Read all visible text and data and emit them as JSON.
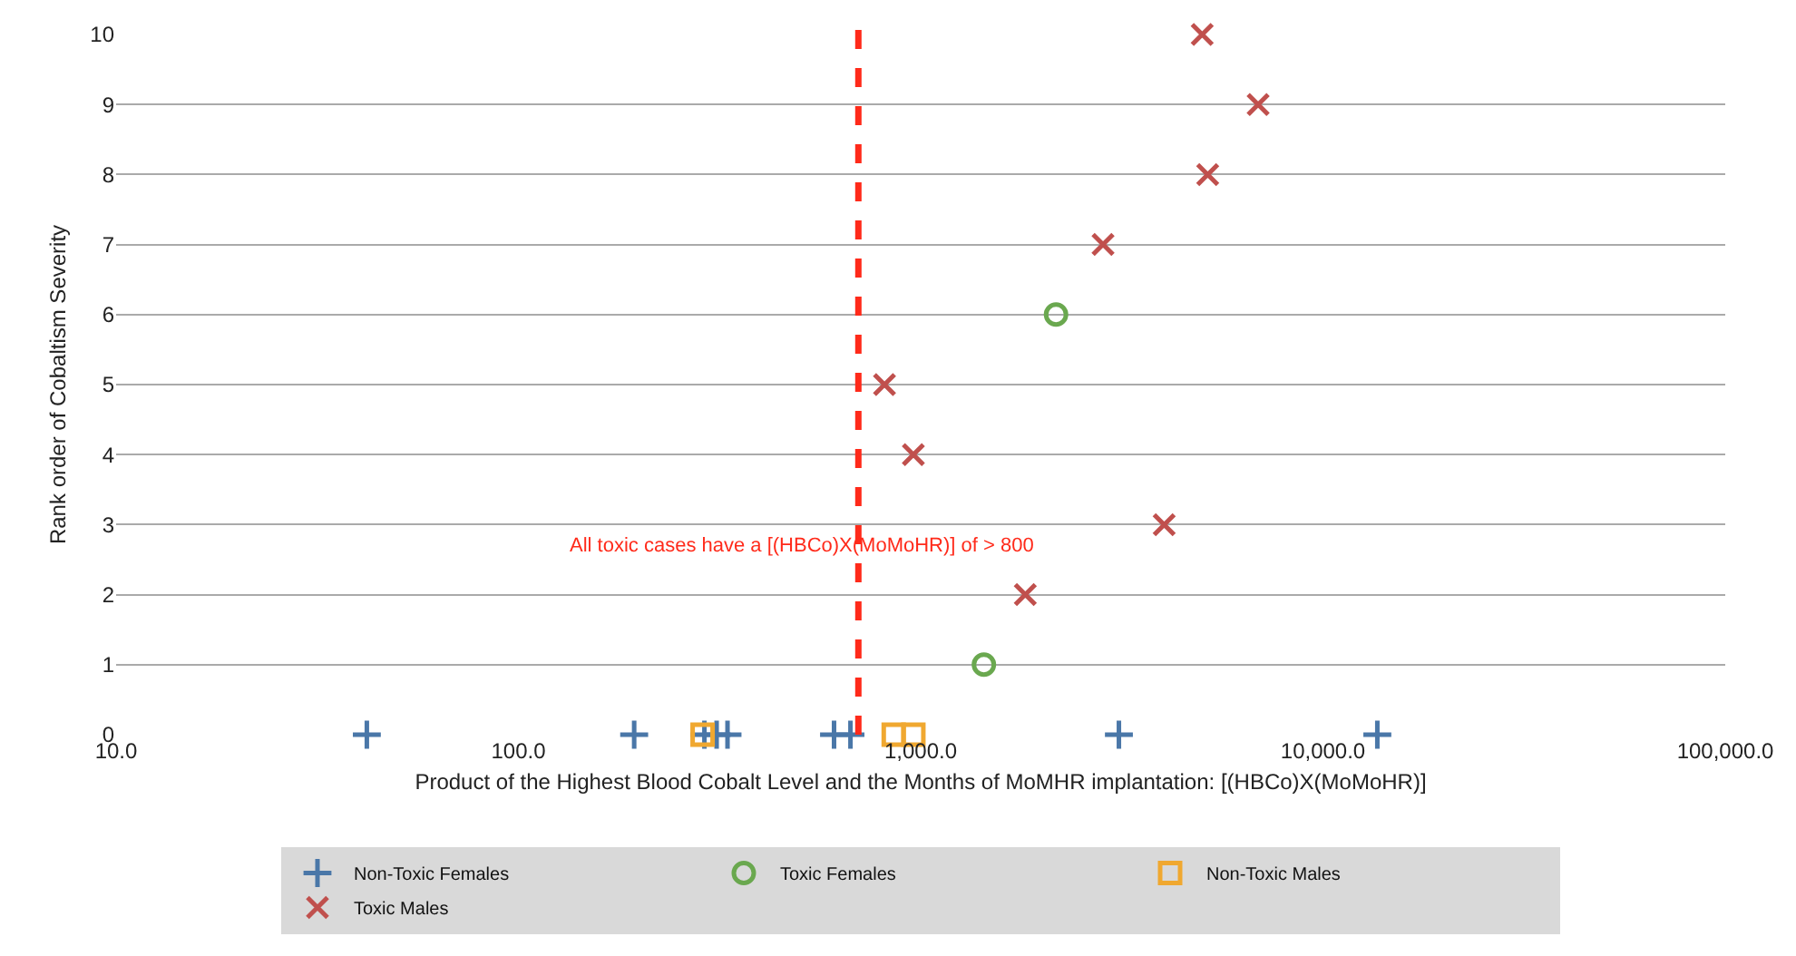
{
  "chart_data": {
    "type": "scatter",
    "xlabel": "Product of the Highest Blood Cobalt Level and the Months of MoMHR implantation: [(HBCo)X(MoMoHR)]",
    "ylabel": "Rank order of Cobaltism Severity",
    "log": "x",
    "xlim": [
      10,
      100000
    ],
    "xticks": [
      {
        "value": 10,
        "label": "10.0"
      },
      {
        "value": 100,
        "label": "100.0"
      },
      {
        "value": 1000,
        "label": "1,000.0"
      },
      {
        "value": 10000,
        "label": "10,000.0"
      },
      {
        "value": 100000,
        "label": "100,000.0"
      }
    ],
    "ylim": [
      0,
      10
    ],
    "yticks": [
      0,
      1,
      2,
      3,
      4,
      5,
      6,
      7,
      8,
      9,
      10
    ],
    "grid": "y",
    "legend": "bottom",
    "series": [
      {
        "name": "Non-Toxic Females",
        "color": "#4a77a8",
        "marker": "cross",
        "x": [
          42,
          194,
          290,
          311,
          331,
          609,
          669,
          3110,
          13650
        ],
        "values": [
          0,
          0,
          0,
          0,
          0,
          0,
          0,
          0,
          0
        ]
      },
      {
        "name": "Toxic Females",
        "color": "#6aa84f",
        "marker": "circle",
        "x": [
          1436,
          2170
        ],
        "values": [
          1,
          6
        ]
      },
      {
        "name": "Non-Toxic Males",
        "color": "#f0a830",
        "marker": "square",
        "x": [
          287,
          857,
          959
        ],
        "values": [
          0,
          0,
          0
        ]
      },
      {
        "name": "Toxic Males",
        "color": "#c0504d",
        "marker": "x",
        "x": [
          1820,
          4030,
          959,
          813,
          2840,
          5170,
          6900,
          5010
        ],
        "values": [
          2,
          3,
          4,
          5,
          7,
          8,
          9,
          10
        ]
      }
    ],
    "ref_lines": [
      {
        "axis": "x",
        "value": 700,
        "color": "#ff2a1a",
        "line_style": "dashed"
      }
    ],
    "annotations": [
      "All toxic cases have a [(HBCo)X(MoMoHR)] of > 800"
    ]
  }
}
